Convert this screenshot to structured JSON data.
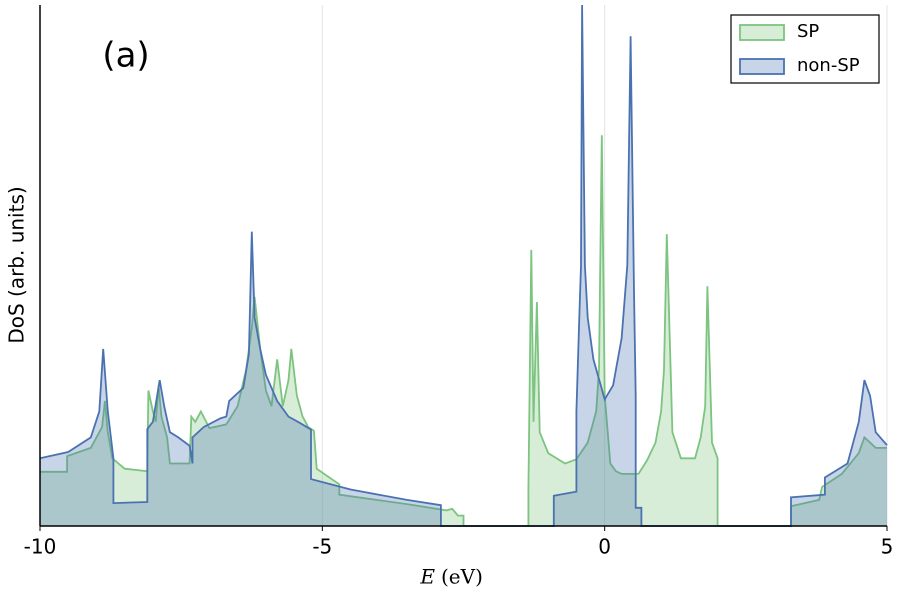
{
  "chart_data": {
    "type": "area",
    "annotation": "(a)",
    "y_label": "DoS (arb. units)",
    "x_label": {
      "symbol": "E",
      "unit": "(eV)"
    },
    "xlim": [
      -10,
      5
    ],
    "xticks": [
      -10,
      -5,
      0,
      5
    ],
    "ylim": [
      0,
      100
    ],
    "grid": "x",
    "legend": "upper right",
    "series": [
      {
        "name": "SP",
        "color": "#7cc47f",
        "x": [
          -10,
          -9.52,
          -9.52,
          -9.1,
          -8.9,
          -8.85,
          -8.8,
          -8.72,
          -8.5,
          -8.1,
          -8.08,
          -8.0,
          -7.95,
          -7.9,
          -7.85,
          -7.75,
          -7.7,
          -7.35,
          -7.32,
          -7.25,
          -7.15,
          -7.0,
          -6.7,
          -6.5,
          -6.35,
          -6.25,
          -6.2,
          -6.1,
          -6.0,
          -5.9,
          -5.8,
          -5.7,
          -5.6,
          -5.55,
          -5.45,
          -5.35,
          -5.25,
          -5.15,
          -5.1,
          -4.7,
          -4.7,
          -3.5,
          -2.8,
          -2.7,
          -2.6,
          -2.5,
          -2.5,
          -1.35,
          -1.35,
          -1.3,
          -1.26,
          -1.2,
          -1.15,
          -1.0,
          -0.7,
          -0.5,
          -0.3,
          -0.15,
          -0.1,
          -0.05,
          0.0,
          0.1,
          0.2,
          0.3,
          0.6,
          0.75,
          0.9,
          1.0,
          1.05,
          1.1,
          1.2,
          1.35,
          1.6,
          1.7,
          1.78,
          1.82,
          1.9,
          2.0,
          2.0,
          3.3,
          3.3,
          3.8,
          3.85,
          4.2,
          4.5,
          4.6,
          4.7,
          4.8,
          5
        ],
        "values": [
          10.4,
          10.4,
          13.4,
          15,
          19,
          24,
          18,
          13,
          11,
          10.5,
          26,
          22,
          20,
          27,
          21,
          17,
          12,
          12,
          21,
          20,
          22,
          18.8,
          19.5,
          23,
          30,
          38,
          44,
          34,
          26,
          23,
          32,
          23,
          28,
          34,
          25,
          21,
          19,
          18.3,
          11,
          8,
          6,
          4.2,
          3,
          3.3,
          2,
          2,
          0,
          0,
          7,
          53,
          20,
          43,
          18,
          14,
          12,
          12.8,
          16,
          22,
          30,
          75,
          25,
          12,
          10.5,
          10,
          10,
          12.6,
          16,
          22,
          30,
          56,
          18,
          13,
          13,
          17,
          23,
          46,
          16,
          13,
          0,
          0,
          3.8,
          5,
          7.5,
          10,
          14,
          17,
          16,
          15,
          15
        ]
      },
      {
        "name": "non-SP",
        "color": "#4a72b0",
        "x": [
          -10,
          -9.5,
          -9.1,
          -8.95,
          -8.88,
          -8.8,
          -8.7,
          -8.7,
          -8.1,
          -8.1,
          -8.0,
          -7.88,
          -7.8,
          -7.7,
          -7.55,
          -7.35,
          -7.3,
          -7.3,
          -7.1,
          -6.8,
          -6.7,
          -6.65,
          -6.4,
          -6.3,
          -6.25,
          -6.2,
          -6.1,
          -6.0,
          -5.8,
          -5.6,
          -5.4,
          -5.2,
          -5.2,
          -4.5,
          -3.5,
          -2.9,
          -2.9,
          -0.9,
          -0.9,
          -0.5,
          -0.5,
          -0.45,
          -0.42,
          -0.4,
          -0.35,
          -0.3,
          -0.2,
          0.0,
          0.15,
          0.3,
          0.4,
          0.46,
          0.52,
          0.55,
          0.55,
          0.65,
          0.65,
          3.3,
          3.3,
          3.9,
          3.9,
          4.3,
          4.5,
          4.6,
          4.7,
          4.8,
          5
        ],
        "values": [
          13,
          14.2,
          17,
          22,
          34,
          22,
          13,
          4.4,
          4.6,
          18.6,
          20,
          28,
          23,
          18,
          17,
          15.4,
          12,
          17,
          19,
          20.7,
          21,
          24,
          26.5,
          33,
          56.5,
          40,
          34,
          29,
          24,
          21,
          19.8,
          18.5,
          9,
          7,
          5,
          4,
          0,
          0,
          5.8,
          6.6,
          22,
          40,
          50,
          100,
          50,
          40,
          32,
          24.3,
          27,
          36,
          50,
          94,
          45,
          25,
          3.5,
          3.5,
          0,
          0,
          5.5,
          6,
          9.3,
          12,
          20,
          28,
          25,
          18,
          15.5
        ]
      }
    ]
  }
}
